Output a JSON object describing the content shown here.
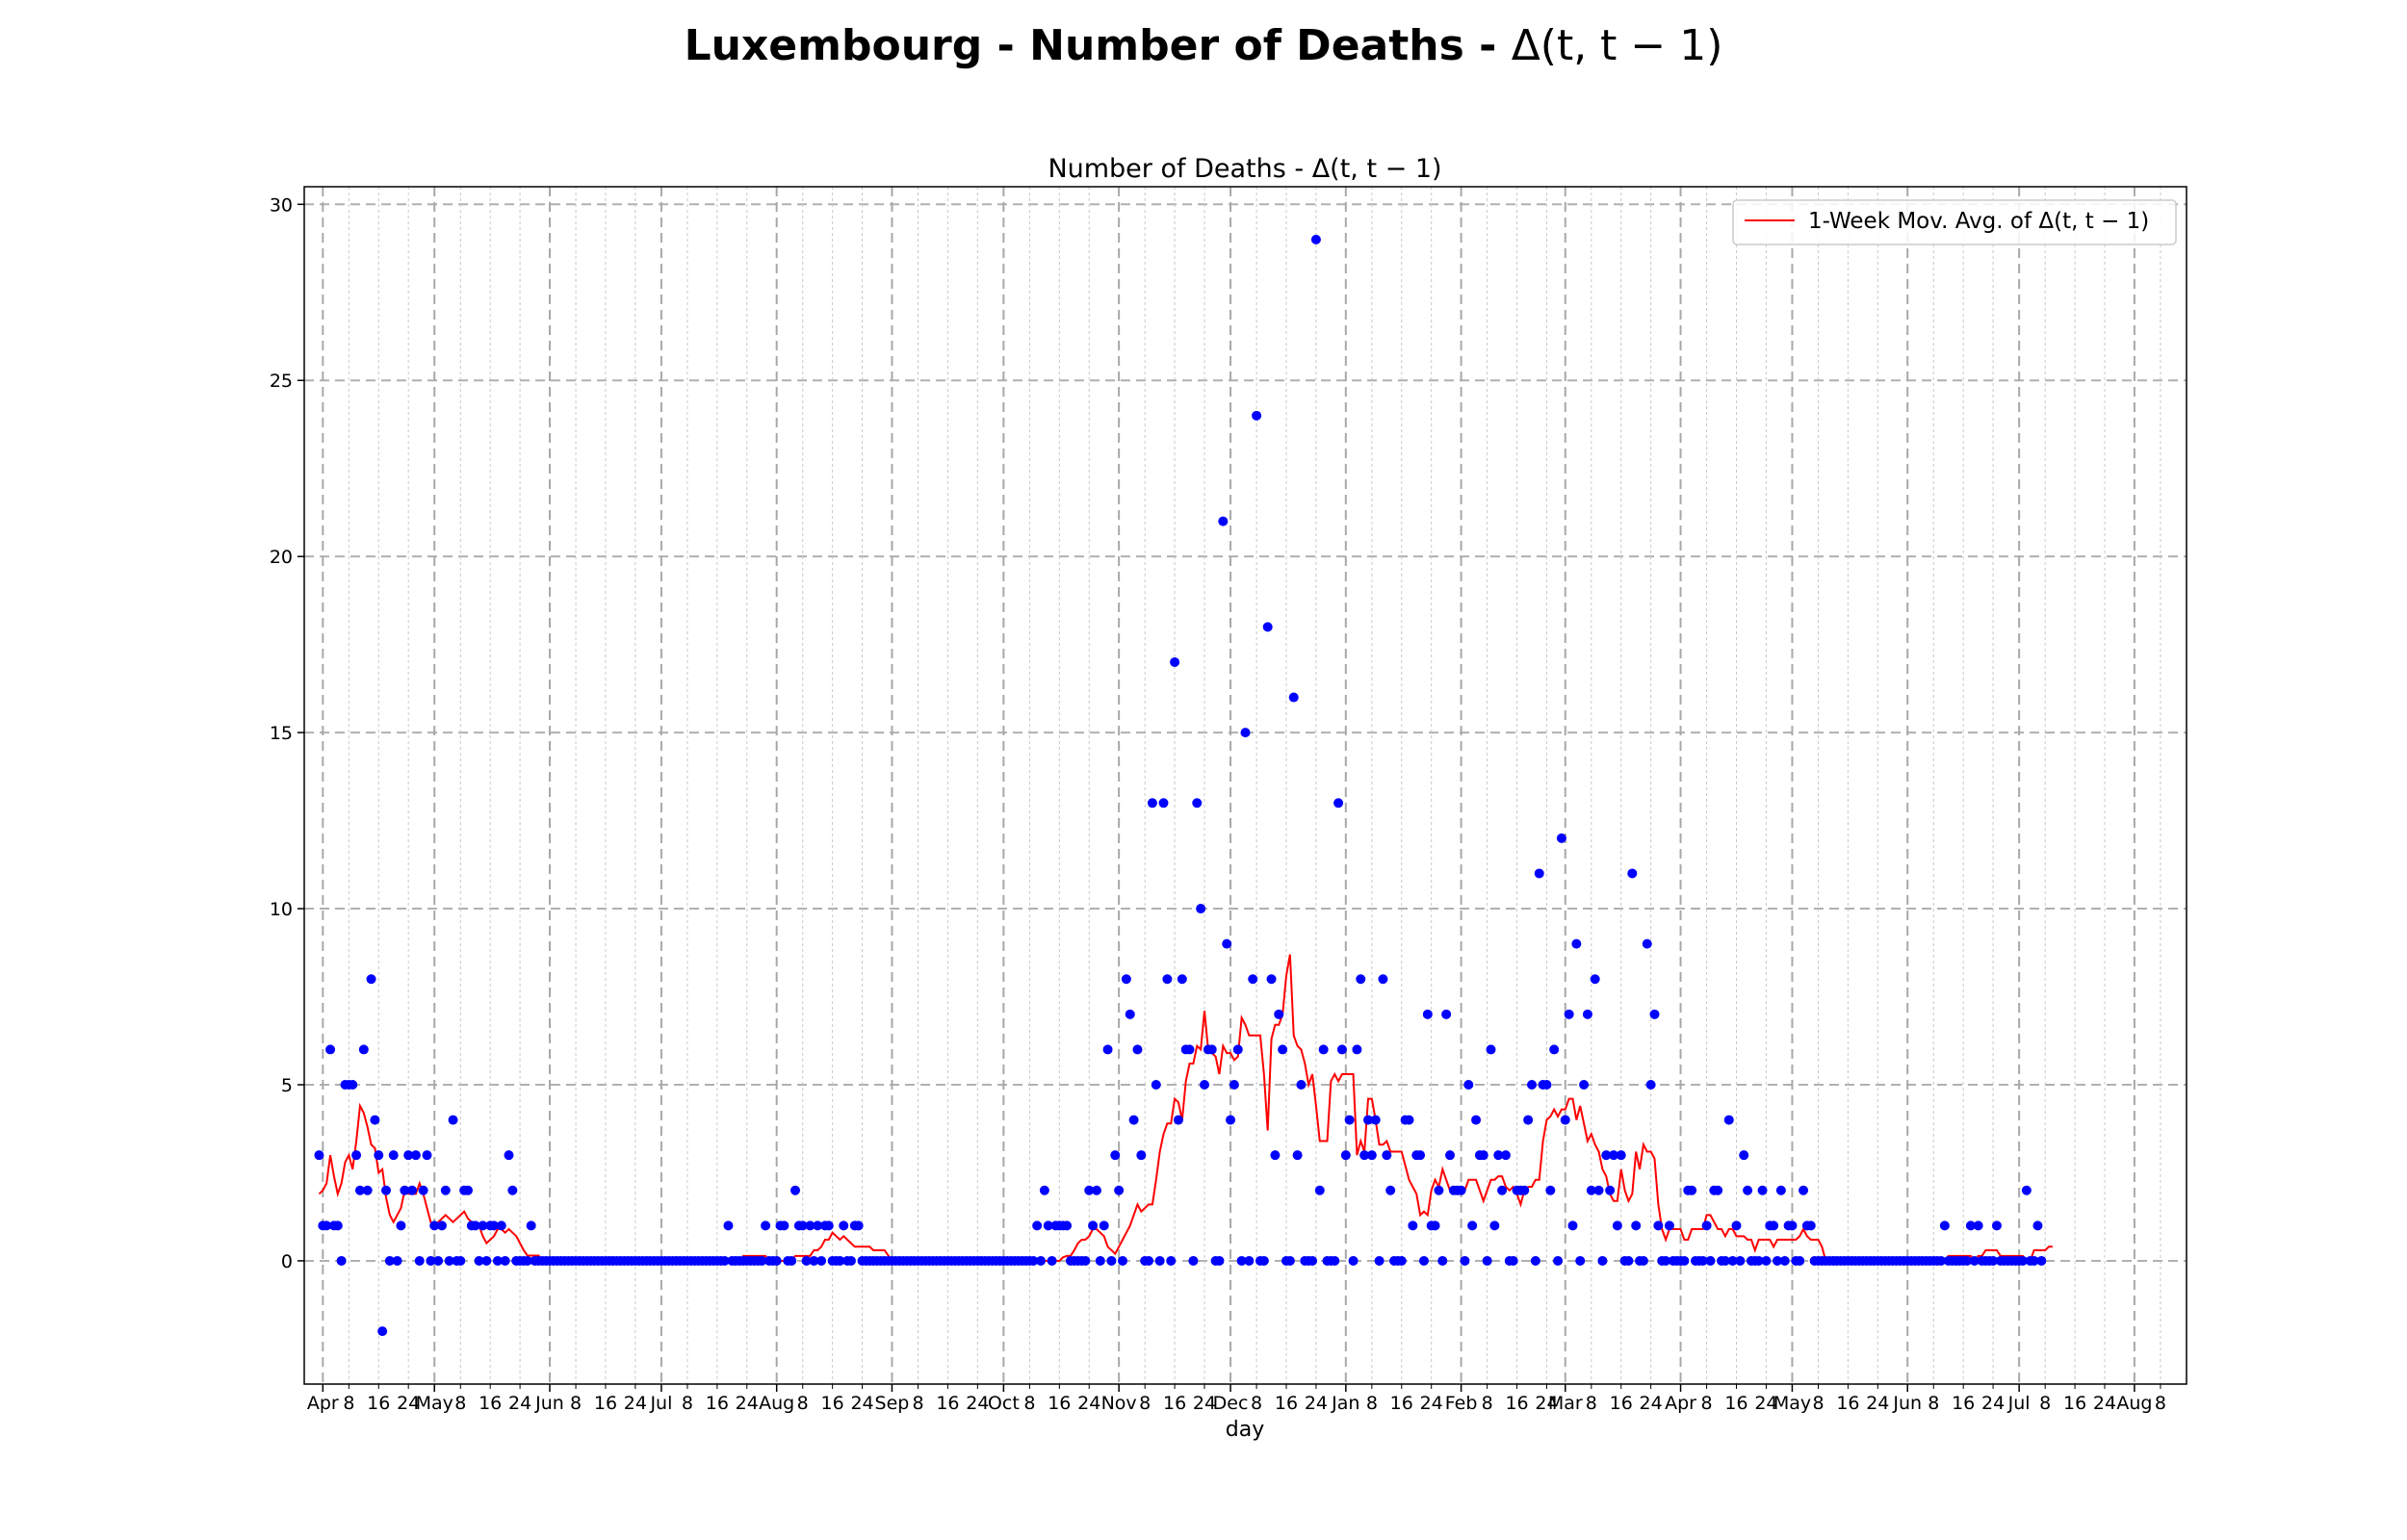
{
  "figure": {
    "suptitle_text": "Luxembourg - Number of Deaths - ",
    "suptitle_math": "Δ(t, t − 1)"
  },
  "chart_data": {
    "type": "scatter",
    "title": "Number of Deaths - Δ(t, t − 1)",
    "xlabel": "day",
    "ylabel": "",
    "x_start_date": "2020-03-31",
    "xlim": [
      "2020-03-27",
      "2021-08-15"
    ],
    "ylim": [
      -3.5,
      30.5
    ],
    "yticks": [
      0,
      5,
      10,
      15,
      20,
      25,
      30
    ],
    "grid": true,
    "legend_position": "top-right",
    "colors": {
      "points": "#0000ff",
      "moving_average": "#ff0000"
    },
    "month_ticks": [
      {
        "date": "2020-04-01",
        "label": "Apr"
      },
      {
        "date": "2020-05-01",
        "label": "May"
      },
      {
        "date": "2020-06-01",
        "label": "Jun"
      },
      {
        "date": "2020-07-01",
        "label": "Jul"
      },
      {
        "date": "2020-08-01",
        "label": "Aug"
      },
      {
        "date": "2020-09-01",
        "label": "Sep"
      },
      {
        "date": "2020-10-01",
        "label": "Oct"
      },
      {
        "date": "2020-11-01",
        "label": "Nov"
      },
      {
        "date": "2020-12-01",
        "label": "Dec"
      },
      {
        "date": "2021-01-01",
        "label": "Jan"
      },
      {
        "date": "2021-02-01",
        "label": "Feb"
      },
      {
        "date": "2021-03-01",
        "label": "Mar"
      },
      {
        "date": "2021-04-01",
        "label": "Apr"
      },
      {
        "date": "2021-05-01",
        "label": "May"
      },
      {
        "date": "2021-06-01",
        "label": "Jun"
      },
      {
        "date": "2021-07-01",
        "label": "Jul"
      },
      {
        "date": "2021-08-01",
        "label": "Aug"
      }
    ],
    "minor_tick_days": [
      8,
      16,
      24
    ],
    "series": [
      {
        "name": "",
        "kind": "scatter",
        "values": [
          3,
          1,
          1,
          6,
          1,
          1,
          0,
          5,
          5,
          5,
          3,
          2,
          6,
          2,
          8,
          4,
          3,
          -2,
          2,
          0,
          3,
          0,
          1,
          2,
          3,
          2,
          3,
          0,
          2,
          3,
          0,
          1,
          0,
          1,
          2,
          0,
          4,
          0,
          0,
          2,
          2,
          1,
          1,
          0,
          1,
          0,
          1,
          1,
          0,
          1,
          0,
          3,
          2,
          0,
          0,
          0,
          0,
          1,
          0,
          0,
          0,
          0,
          0,
          0,
          0,
          0,
          0,
          0,
          0,
          0,
          0,
          0,
          0,
          0,
          0,
          0,
          0,
          0,
          0,
          0,
          0,
          0,
          0,
          0,
          0,
          0,
          0,
          0,
          0,
          0,
          0,
          0,
          0,
          0,
          0,
          0,
          0,
          0,
          0,
          0,
          0,
          0,
          0,
          0,
          0,
          0,
          0,
          0,
          0,
          0,
          1,
          0,
          0,
          0,
          0,
          0,
          0,
          0,
          0,
          0,
          1,
          0,
          0,
          0,
          1,
          1,
          0,
          0,
          2,
          1,
          1,
          0,
          1,
          0,
          1,
          0,
          1,
          1,
          0,
          0,
          0,
          1,
          0,
          0,
          1,
          1,
          0,
          0,
          0,
          0,
          0,
          0,
          0,
          0,
          0,
          0,
          0,
          0,
          0,
          0,
          0,
          0,
          0,
          0,
          0,
          0,
          0,
          0,
          0,
          0,
          0,
          0,
          0,
          0,
          0,
          0,
          0,
          0,
          0,
          0,
          0,
          0,
          0,
          0,
          0,
          0,
          0,
          0,
          0,
          0,
          0,
          0,
          0,
          1,
          0,
          2,
          1,
          0,
          1,
          1,
          1,
          1,
          0,
          0,
          0,
          0,
          0,
          2,
          1,
          2,
          0,
          1,
          6,
          0,
          3,
          2,
          0,
          8,
          7,
          4,
          6,
          3,
          0,
          0,
          13,
          5,
          0,
          13,
          8,
          0,
          17,
          4,
          8,
          6,
          6,
          0,
          13,
          10,
          5,
          6,
          6,
          0,
          0,
          21,
          9,
          4,
          5,
          6,
          0,
          15,
          0,
          8,
          24,
          0,
          0,
          18,
          8,
          3,
          7,
          6,
          0,
          0,
          16,
          3,
          5,
          0,
          0,
          0,
          29,
          2,
          6,
          0,
          0,
          0,
          13,
          6,
          3,
          4,
          0,
          6,
          8,
          3,
          4,
          3,
          4,
          0,
          8,
          3,
          2,
          0,
          0,
          0,
          4,
          4,
          1,
          3,
          3,
          0,
          7,
          1,
          1,
          2,
          0,
          7,
          3,
          2,
          2,
          2,
          0,
          5,
          1,
          4,
          3,
          3,
          0,
          6,
          1,
          3,
          2,
          3,
          0,
          0,
          2,
          2,
          2,
          4,
          5,
          0,
          11,
          5,
          5,
          2,
          6,
          0,
          12,
          4,
          7,
          1,
          9,
          0,
          5,
          7,
          2,
          8,
          2,
          0,
          3,
          2,
          3,
          1,
          3,
          0,
          0,
          11,
          1,
          0,
          0,
          9,
          5,
          7,
          1,
          0,
          0,
          1,
          0,
          0,
          0,
          0,
          2,
          2,
          0,
          0,
          0,
          1,
          0,
          2,
          2,
          0,
          0,
          4,
          0,
          1,
          0,
          3,
          2,
          0,
          0,
          0,
          2,
          0,
          1,
          1,
          0,
          2,
          0,
          1,
          1,
          0,
          0,
          2,
          1,
          1,
          0,
          0,
          0,
          0,
          0,
          0,
          0,
          0,
          0,
          0,
          0,
          0,
          0,
          0,
          0,
          0,
          0,
          0,
          0,
          0,
          0,
          0,
          0,
          0,
          0,
          0,
          0,
          0,
          0,
          0,
          0,
          0,
          0,
          0,
          0,
          1,
          0,
          0,
          0,
          0,
          0,
          0,
          1,
          0,
          1,
          0,
          0,
          0,
          0,
          1,
          0,
          0,
          0,
          0,
          0,
          0,
          0,
          2,
          0,
          0,
          1,
          0
        ]
      },
      {
        "name": "1-Week Mov. Avg. of Δ(t, t − 1)",
        "kind": "line",
        "values": [
          1.9,
          2.0,
          2.2,
          3.0,
          2.4,
          1.9,
          2.2,
          2.8,
          3.0,
          2.6,
          3.4,
          4.4,
          4.2,
          3.8,
          3.3,
          3.2,
          2.5,
          2.6,
          1.8,
          1.3,
          1.1,
          1.3,
          1.5,
          2.0,
          1.9,
          1.9,
          1.9,
          2.2,
          1.9,
          1.5,
          1.1,
          1.0,
          1.1,
          1.2,
          1.3,
          1.2,
          1.1,
          1.2,
          1.3,
          1.4,
          1.2,
          1.1,
          0.9,
          1.0,
          0.7,
          0.5,
          0.6,
          0.7,
          0.9,
          0.9,
          0.8,
          0.9,
          0.8,
          0.7,
          0.5,
          0.3,
          0.15,
          0.15,
          0.15,
          0.15,
          0.0,
          0.0,
          0.0,
          0.0,
          0.0,
          0.0,
          0.0,
          0.0,
          0.0,
          0.0,
          0.0,
          0.0,
          0.0,
          0.0,
          0.0,
          0.0,
          0.0,
          0.0,
          0.0,
          0.0,
          0.0,
          0.0,
          0.0,
          0.0,
          0.0,
          0.0,
          0.0,
          0.0,
          0.0,
          0.0,
          0.0,
          0.0,
          0.0,
          0.0,
          0.0,
          0.0,
          0.0,
          0.0,
          0.0,
          0.0,
          0.0,
          0.0,
          0.0,
          0.0,
          0.0,
          0.0,
          0.0,
          0.0,
          0.0,
          0.0,
          0.0,
          0.0,
          0.0,
          0.0,
          0.14,
          0.14,
          0.14,
          0.14,
          0.14,
          0.14,
          0.14,
          0.0,
          0.0,
          0.0,
          0.0,
          0.0,
          0.0,
          0.0,
          0.14,
          0.14,
          0.14,
          0.14,
          0.14,
          0.3,
          0.3,
          0.4,
          0.6,
          0.6,
          0.8,
          0.7,
          0.6,
          0.7,
          0.6,
          0.5,
          0.4,
          0.4,
          0.4,
          0.4,
          0.4,
          0.3,
          0.3,
          0.3,
          0.3,
          0.15,
          0.0,
          0.0,
          0.0,
          0.0,
          0.0,
          0.0,
          0.0,
          0.0,
          0.0,
          0.0,
          0.0,
          0.0,
          0.0,
          0.0,
          0.0,
          0.0,
          0.0,
          0.0,
          0.0,
          0.0,
          0.0,
          0.0,
          0.0,
          0.0,
          0.0,
          0.0,
          0.0,
          0.0,
          0.0,
          0.0,
          0.0,
          0.0,
          0.0,
          0.0,
          0.0,
          0.0,
          0.0,
          0.0,
          0.0,
          0.0,
          0.0,
          0.0,
          0.0,
          0.0,
          0.0,
          0.0,
          0.1,
          0.14,
          0.14,
          0.3,
          0.5,
          0.6,
          0.6,
          0.7,
          0.9,
          0.9,
          0.8,
          0.7,
          0.4,
          0.3,
          0.2,
          0.4,
          0.6,
          0.8,
          1.0,
          1.3,
          1.6,
          1.4,
          1.5,
          1.6,
          1.6,
          2.3,
          3.1,
          3.6,
          3.9,
          3.9,
          4.6,
          4.5,
          4.0,
          5.1,
          5.6,
          5.6,
          6.1,
          6.0,
          7.1,
          6.0,
          5.9,
          5.8,
          5.3,
          6.1,
          5.9,
          5.9,
          5.7,
          5.8,
          6.9,
          6.7,
          6.4,
          6.4,
          6.4,
          6.4,
          5.3,
          3.7,
          6.3,
          6.7,
          6.7,
          7.0,
          8.1,
          8.7,
          6.4,
          6.1,
          6.0,
          5.6,
          5.0,
          5.3,
          4.4,
          3.4,
          3.4,
          3.4,
          5.1,
          5.3,
          5.1,
          5.3,
          5.3,
          5.3,
          5.3,
          3.0,
          3.4,
          3.1,
          4.6,
          4.6,
          4.0,
          3.3,
          3.3,
          3.4,
          3.1,
          3.1,
          3.1,
          3.1,
          2.7,
          2.3,
          2.1,
          1.9,
          1.3,
          1.4,
          1.3,
          2.0,
          2.3,
          2.1,
          2.6,
          2.3,
          2.0,
          1.9,
          1.9,
          1.9,
          2.0,
          2.3,
          2.3,
          2.3,
          2.0,
          1.7,
          2.0,
          2.3,
          2.3,
          2.4,
          2.4,
          2.1,
          2.0,
          2.1,
          1.9,
          1.6,
          2.0,
          2.1,
          2.1,
          2.3,
          2.3,
          3.4,
          4.0,
          4.1,
          4.3,
          4.1,
          4.3,
          4.3,
          4.6,
          4.6,
          4.0,
          4.4,
          3.9,
          3.4,
          3.6,
          3.3,
          3.1,
          2.6,
          2.4,
          1.9,
          1.7,
          1.7,
          2.6,
          2.0,
          1.7,
          1.9,
          3.1,
          2.6,
          3.3,
          3.1,
          3.1,
          2.9,
          1.6,
          0.9,
          0.6,
          0.9,
          0.9,
          0.9,
          0.9,
          0.6,
          0.6,
          0.9,
          0.9,
          0.9,
          0.9,
          1.3,
          1.3,
          1.1,
          0.9,
          0.9,
          0.7,
          0.9,
          0.9,
          0.7,
          0.7,
          0.7,
          0.6,
          0.6,
          0.3,
          0.6,
          0.6,
          0.6,
          0.6,
          0.4,
          0.6,
          0.6,
          0.6,
          0.6,
          0.6,
          0.6,
          0.7,
          0.9,
          0.7,
          0.6,
          0.6,
          0.6,
          0.4,
          0.0,
          0.0,
          0.0,
          0.0,
          0.0,
          0.0,
          0.0,
          0.0,
          0.0,
          0.0,
          0.0,
          0.0,
          0.0,
          0.0,
          0.0,
          0.0,
          0.0,
          0.0,
          0.0,
          0.0,
          0.0,
          0.0,
          0.0,
          0.0,
          0.0,
          0.0,
          0.0,
          0.0,
          0.0,
          0.0,
          0.0,
          0.0,
          0.0,
          0.14,
          0.14,
          0.14,
          0.14,
          0.14,
          0.14,
          0.14,
          0.0,
          0.14,
          0.14,
          0.3,
          0.3,
          0.3,
          0.3,
          0.14,
          0.14,
          0.14,
          0.14,
          0.14,
          0.14,
          0.14,
          0.0,
          0.0,
          0.3,
          0.3,
          0.3,
          0.3,
          0.4,
          0.4
        ]
      }
    ]
  }
}
